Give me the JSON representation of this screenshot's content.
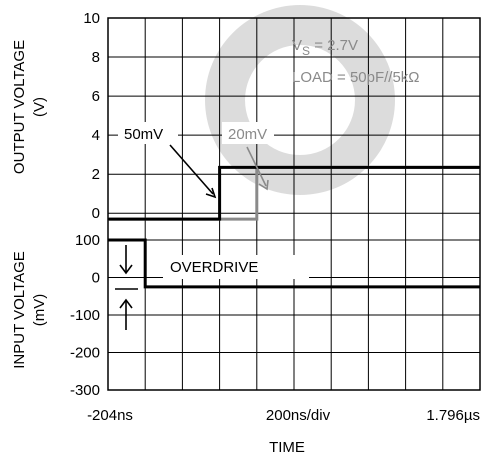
{
  "chart_data": {
    "type": "line",
    "xlabel": "TIME",
    "x_tick_labels": [
      "-204ns",
      "200ns/div",
      "1.796µs"
    ],
    "x_range_ns": [
      -204,
      1796
    ],
    "x_div_ns": 200,
    "upper": {
      "ylabel_line1": "OUTPUT VOLTAGE",
      "ylabel_line2": "(V)",
      "ylim": [
        -0.5,
        10
      ],
      "yticks": [
        0,
        2,
        4,
        6,
        8,
        10
      ],
      "series": [
        {
          "name": "50mV",
          "color": "#000000",
          "x": [
            -204,
            396,
            396,
            1796
          ],
          "y": [
            -0.3,
            -0.3,
            2.35,
            2.35
          ]
        },
        {
          "name": "20mV",
          "color": "#8a8a8a",
          "x": [
            -204,
            596,
            596,
            1796
          ],
          "y": [
            -0.3,
            -0.3,
            2.35,
            2.35
          ]
        }
      ]
    },
    "lower": {
      "ylabel_line1": "INPUT VOLTAGE",
      "ylabel_line2": "(mV)",
      "ylim": [
        -300,
        100
      ],
      "yticks": [
        100,
        0,
        -100,
        -200,
        -300
      ],
      "series": [
        {
          "name": "input",
          "color": "#000000",
          "x": [
            -204,
            -4,
            -4,
            1796
          ],
          "y": [
            100,
            100,
            -25,
            -25
          ]
        }
      ]
    },
    "grid": true
  },
  "annotations": {
    "vs_main": "V",
    "vs_sub": "S",
    "vs_value": " = 2.7V",
    "load": "LOAD = 50pF//5kΩ",
    "label_50mv": "50mV",
    "label_20mv": "20mV",
    "overdrive": "OVERDRIVE"
  },
  "watermark": "OB"
}
